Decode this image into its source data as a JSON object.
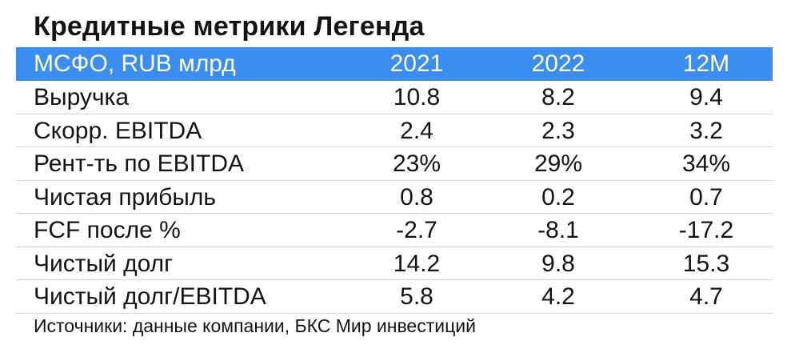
{
  "title": "Кредитные метрики Легенда",
  "colors": {
    "header_background": "#3b8df0",
    "header_text": "#ffffff",
    "row_divider": "#d4d4d4",
    "text": "#141414"
  },
  "table": {
    "header": [
      "МСФО, RUB млрд",
      "2021",
      "2022",
      "12М"
    ],
    "rows": [
      [
        "Выручка",
        "10.8",
        "8.2",
        "9.4"
      ],
      [
        "Скорр. EBITDA",
        "2.4",
        "2.3",
        "3.2"
      ],
      [
        "Рент-ть по EBITDA",
        "23%",
        "29%",
        "34%"
      ],
      [
        "Чистая прибыль",
        "0.8",
        "0.2",
        "0.7"
      ],
      [
        "FCF после %",
        "-2.7",
        "-8.1",
        "-17.2"
      ],
      [
        "Чистый долг",
        "14.2",
        "9.8",
        "15.3"
      ],
      [
        "Чистый долг/EBITDA",
        "5.8",
        "4.2",
        "4.7"
      ]
    ]
  },
  "source": "Источники: данные компании, БКС Мир инвестиций"
}
